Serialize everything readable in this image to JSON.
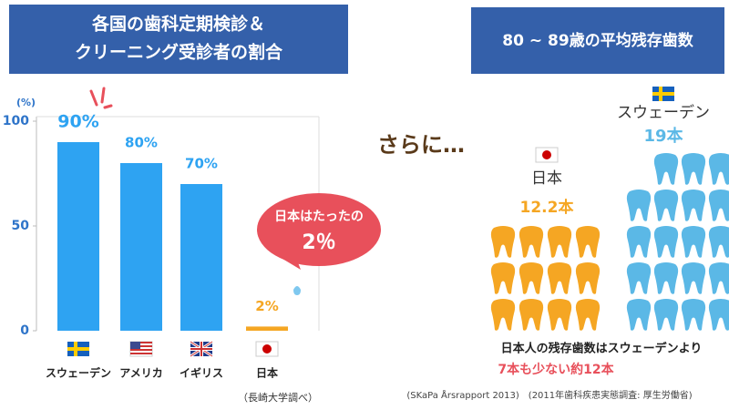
{
  "chart_data": [
    {
      "type": "bar",
      "title": [
        "各国の歯科定期検診＆",
        "クリーニング受診者の割合"
      ],
      "ylabel": "(%)",
      "categories": [
        "スウェーデン",
        "アメリカ",
        "イギリス",
        "日本"
      ],
      "values": [
        90,
        80,
        70,
        2
      ],
      "value_labels": [
        "90%",
        "80%",
        "70%",
        "2%"
      ],
      "colors": [
        "#2ea3f2",
        "#2ea3f2",
        "#2ea3f2",
        "#f5a623"
      ],
      "ylim": [
        0,
        100
      ],
      "yticks": [
        0,
        50,
        100
      ],
      "annotations": [
        "日本はたったの",
        "2％"
      ],
      "source": "（長崎大学調べ）"
    },
    {
      "type": "pictograph",
      "title": "80 ~ 89歳の平均残存歯数",
      "categories": [
        "日本",
        "スウェーデン"
      ],
      "values": [
        12.2,
        19
      ],
      "value_labels": [
        "12.2本",
        "19本"
      ],
      "colors": [
        "#f5a623",
        "#5bb8e6"
      ],
      "annotations": [
        "日本人の残存歯数はスウェーデンより",
        "7本も少ない約12本"
      ],
      "source": "(SKaPa Årsrapport 2013)　(2011年歯科疾患実態調査: 厚生労働省)"
    }
  ],
  "transition": "さらに…"
}
